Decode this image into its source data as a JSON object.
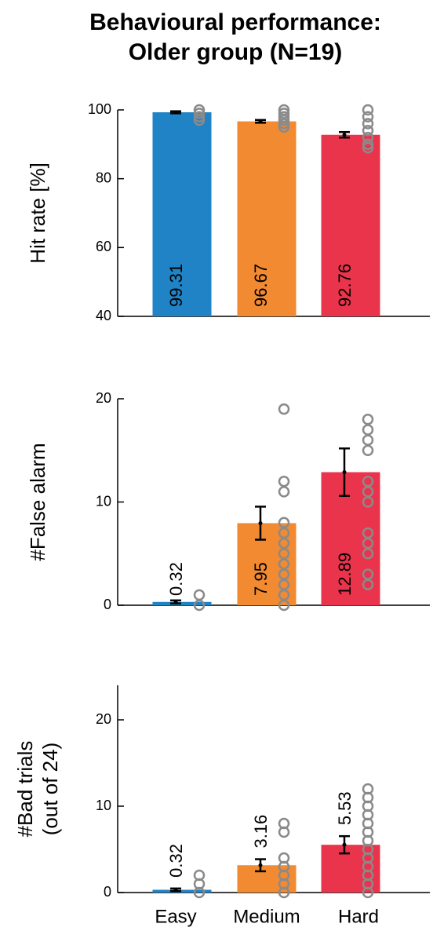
{
  "title": [
    "Behavioural performance:",
    "Older group (N=19)"
  ],
  "chart_data": [
    {
      "type": "bar",
      "ylabel": [
        "Hit rate [%]"
      ],
      "colors": [
        "#1f83c6",
        "#f28a32",
        "#e9344c"
      ],
      "values": [
        99.31,
        96.67,
        92.76
      ],
      "errors": [
        0.3,
        0.4,
        0.8
      ],
      "points": [
        [
          100,
          99,
          98,
          97
        ],
        [
          100,
          99,
          98,
          97,
          96,
          95
        ],
        [
          100,
          98,
          96,
          94,
          92,
          90,
          89
        ]
      ],
      "ylim": [
        40,
        100
      ],
      "yticks": [
        40,
        60,
        80,
        100
      ],
      "label_position": "base"
    },
    {
      "type": "bar",
      "ylabel": [
        "#False alarm"
      ],
      "colors": [
        "#1f83c6",
        "#f28a32",
        "#e9344c"
      ],
      "values": [
        0.32,
        7.95,
        12.89
      ],
      "errors": [
        0.15,
        1.6,
        2.3
      ],
      "points": [
        [
          0,
          1
        ],
        [
          0,
          1,
          2,
          3,
          4,
          5,
          6,
          7,
          8,
          11,
          12,
          19
        ],
        [
          2,
          3,
          5,
          6,
          7,
          10,
          11,
          12,
          15,
          16,
          17,
          18
        ]
      ],
      "ylim": [
        0,
        20
      ],
      "yticks": [
        0,
        10,
        20
      ],
      "label_position": "base"
    },
    {
      "type": "bar",
      "ylabel": [
        "#Bad trials",
        "(out of 24)"
      ],
      "colors": [
        "#1f83c6",
        "#f28a32",
        "#e9344c"
      ],
      "categories": [
        "Easy",
        "Medium",
        "Hard"
      ],
      "values": [
        0.32,
        3.16,
        5.53
      ],
      "errors": [
        0.15,
        0.7,
        1.0
      ],
      "points": [
        [
          0,
          1,
          2
        ],
        [
          0,
          1,
          2,
          3,
          4,
          7,
          8
        ],
        [
          0,
          1,
          2,
          3,
          4,
          5,
          6,
          7,
          8,
          9,
          10,
          11,
          12
        ]
      ],
      "ylim": [
        0,
        24
      ],
      "yticks": [
        0,
        10,
        20
      ],
      "label_position": "above"
    }
  ]
}
